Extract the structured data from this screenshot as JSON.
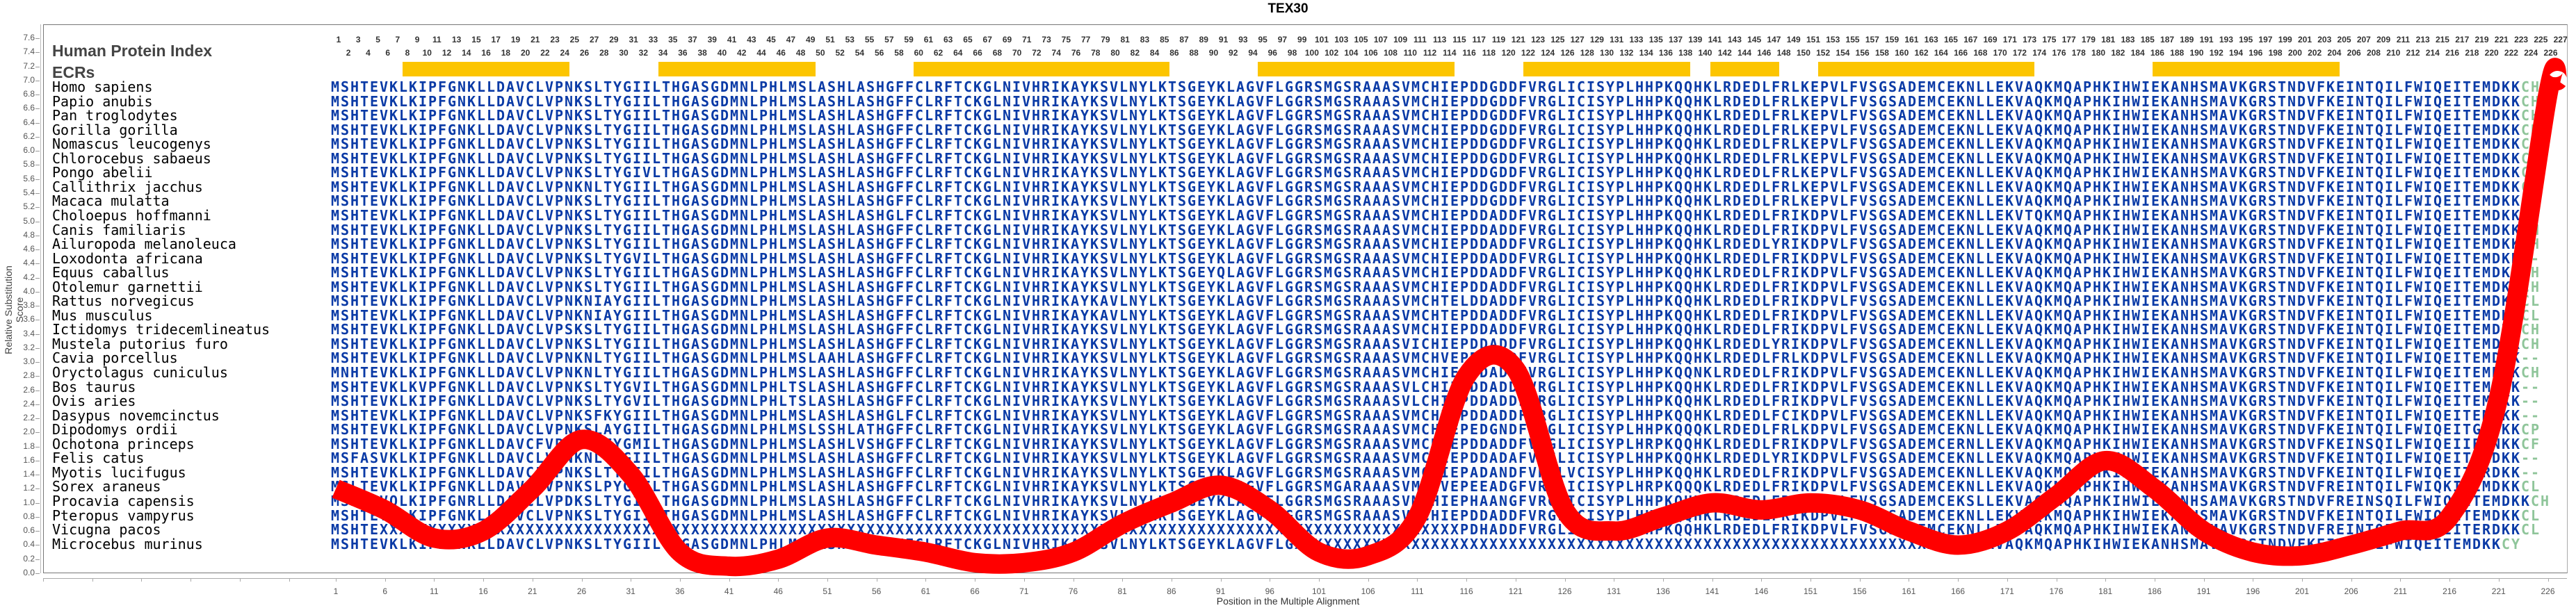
{
  "title": "TEX30",
  "header": {
    "hpi_label": "Human Protein Index",
    "ecr_label": "ECRs"
  },
  "chart_data": {
    "type": "line",
    "title": "TEX30",
    "xlabel": "Position in the Multiple Alignment",
    "ylabel": "Relative Substitution Score",
    "ylim": [
      0.0,
      7.6
    ],
    "xlim": [
      1,
      227
    ],
    "yticks": [
      "0.0",
      "0.2",
      "0.4",
      "0.6",
      "0.8",
      "1.0",
      "1.2",
      "1.4",
      "1.6",
      "1.8",
      "2.0",
      "2.2",
      "2.4",
      "2.6",
      "2.8",
      "3.0",
      "3.2",
      "3.4",
      "3.6",
      "3.8",
      "4.0",
      "4.2",
      "4.4",
      "4.6",
      "4.8",
      "5.0",
      "5.2",
      "5.4",
      "5.6",
      "5.8",
      "6.0",
      "6.2",
      "6.4",
      "6.6",
      "6.8",
      "7.0",
      "7.2",
      "7.4",
      "7.6"
    ],
    "xticks": [
      "1",
      "6",
      "11",
      "16",
      "21",
      "26",
      "31",
      "36",
      "41",
      "46",
      "51",
      "56",
      "61",
      "66",
      "71",
      "76",
      "81",
      "86",
      "91",
      "96",
      "101",
      "106",
      "111",
      "116",
      "121",
      "126",
      "131",
      "136",
      "141",
      "146",
      "151",
      "156",
      "161",
      "166",
      "171",
      "176",
      "181",
      "186",
      "191",
      "196",
      "201",
      "206",
      "211",
      "216",
      "221",
      "226"
    ],
    "series": [
      {
        "name": "Relative Substitution Score",
        "color": "#ff0000",
        "x": [
          1,
          6,
          11,
          16,
          21,
          26,
          31,
          36,
          41,
          46,
          51,
          56,
          61,
          66,
          71,
          76,
          81,
          86,
          91,
          96,
          101,
          106,
          111,
          116,
          121,
          126,
          131,
          136,
          141,
          146,
          151,
          156,
          161,
          166,
          171,
          176,
          181,
          186,
          191,
          196,
          201,
          206,
          211,
          216,
          221,
          226,
          227
        ],
        "values": [
          1.2,
          0.9,
          0.5,
          0.6,
          1.2,
          1.9,
          1.4,
          0.3,
          0.1,
          0.2,
          0.5,
          0.4,
          0.3,
          0.15,
          0.15,
          0.3,
          0.7,
          1.0,
          1.25,
          0.9,
          0.3,
          0.25,
          0.8,
          2.8,
          2.9,
          0.9,
          0.6,
          0.8,
          1.0,
          0.9,
          1.0,
          0.9,
          0.6,
          0.4,
          0.6,
          1.1,
          1.6,
          1.2,
          0.6,
          0.3,
          0.25,
          0.4,
          0.6,
          0.8,
          2.5,
          6.8,
          7.0
        ]
      }
    ],
    "ecr_regions": [
      [
        8,
        24
      ],
      [
        34,
        49
      ],
      [
        60,
        85
      ],
      [
        95,
        114
      ],
      [
        122,
        138
      ],
      [
        141,
        147
      ],
      [
        152,
        173
      ],
      [
        186,
        204
      ]
    ],
    "grid": false,
    "legend": "none"
  },
  "position_numbers": {
    "odd": [
      "1",
      "3",
      "5",
      "7",
      "9",
      "11",
      "13",
      "15",
      "17",
      "19",
      "21",
      "23",
      "25",
      "27",
      "29",
      "31",
      "33",
      "35",
      "37",
      "39",
      "41",
      "43",
      "45",
      "47",
      "49",
      "51",
      "53",
      "55",
      "57",
      "59",
      "61",
      "63",
      "65",
      "67",
      "69",
      "71",
      "73",
      "75",
      "77",
      "79",
      "81",
      "83",
      "85",
      "87",
      "89",
      "91",
      "93",
      "95",
      "97",
      "99",
      "101",
      "103",
      "105",
      "107",
      "109",
      "111",
      "113",
      "115",
      "117",
      "119",
      "121",
      "123",
      "125",
      "127",
      "129",
      "131",
      "133",
      "135",
      "137",
      "139",
      "141",
      "143",
      "145",
      "147",
      "149",
      "151",
      "153",
      "155",
      "157",
      "159",
      "161",
      "163",
      "165",
      "167",
      "169",
      "171",
      "173",
      "175",
      "177",
      "179",
      "181",
      "183",
      "185",
      "187",
      "189",
      "191",
      "193",
      "195",
      "197",
      "199",
      "201",
      "203",
      "205",
      "207",
      "209",
      "211",
      "213",
      "215",
      "217",
      "219",
      "221",
      "223",
      "225",
      "227"
    ],
    "even": [
      "2",
      "4",
      "6",
      "8",
      "10",
      "12",
      "14",
      "16",
      "18",
      "20",
      "22",
      "24",
      "26",
      "28",
      "30",
      "32",
      "34",
      "36",
      "38",
      "40",
      "42",
      "44",
      "46",
      "48",
      "50",
      "52",
      "54",
      "56",
      "58",
      "60",
      "62",
      "64",
      "66",
      "68",
      "70",
      "72",
      "74",
      "76",
      "78",
      "80",
      "82",
      "84",
      "86",
      "88",
      "90",
      "92",
      "94",
      "96",
      "98",
      "100",
      "102",
      "104",
      "106",
      "108",
      "110",
      "112",
      "114",
      "116",
      "118",
      "120",
      "122",
      "124",
      "126",
      "128",
      "130",
      "132",
      "134",
      "136",
      "138",
      "140",
      "142",
      "144",
      "146",
      "148",
      "150",
      "152",
      "154",
      "156",
      "158",
      "160",
      "162",
      "164",
      "166",
      "168",
      "170",
      "172",
      "174",
      "176",
      "178",
      "180",
      "182",
      "184",
      "186",
      "188",
      "190",
      "192",
      "194",
      "196",
      "198",
      "200",
      "202",
      "204",
      "206",
      "208",
      "210",
      "212",
      "214",
      "216",
      "218",
      "220",
      "222",
      "224",
      "226"
    ]
  },
  "alignment": [
    {
      "species": "Homo sapiens",
      "seq": "MSHTEVKLKIPFGNKLLDAVCLVPNKSLTYGIILTHGASGDMNLPHLMSLASHLASHGFFCLRFTCKGLNIVHRIKAYKSVLNYLKTSGEYKLAGVFLGGRSMGSRAAASVMCHIEPDDGDDFVRGLICISYPLHHPKQQHKLRDEDLFRLKEPVLFVSGSADEMCEKNLLEKVAQKMQAPHKIHWIEKANHSMAVKGRSTNDVFKEINTQILFWIQEITEMDKKCH"
    },
    {
      "species": "Papio anubis",
      "seq": "MSHTEVKLKIPFGNKLLDAVCLVPNKSLTYGIILTHGASGDMNLPHLMSLASHLASHGFFCLRFTCKGLNIVHRIKAYKSVLNYLKTSGEYKLAGVFLGGRSMGSRAAASVMCHIEPDDGDDFVRGLICISYPLHHPKQQHKLRDEDLFRLKEPVLFVSGSADEMCEKNLLEKVAQKMQAPHKIHWIEKANHSMAVKGRSTNDVFKEINTQILFWIQEITEMDKKCH"
    },
    {
      "species": "Pan troglodytes",
      "seq": "MSHTEVKLKIPFGNKLLDAVCLVPNKSLTYGIILTHGASGDMNLPHLMSLASHLASHGFFCLRFTCKGLNIVHRIKAYKSVLNYLKTSGEYKLAGVFLGGRSMGSRAAASVMCHIEPDDGDDFVRGLICISYPLHHPKQQHKLRDEDLFRLKEPVLFVSGSADEMCEKNLLEKVAQKMQAPHKIHWIEKANHSMAVKGRSTNDVFKEINTQILFWIQEITEMDKKCH"
    },
    {
      "species": "Gorilla gorilla",
      "seq": "MSHTEVKLKIPFGNKLLDAVCLVPNKSLTYGIILTHGASGDMNLPHLMSLASHLASHGFFCLRFTCKGLNIVHRIKAYKSVLNYLKTSGEYKLAGVFLGGRSMGSRAAASVMCHIEPDDGDDFVRGLICISYPLHHPKQQHKLRDEDLFRLKEPVLFVSGSADEMCEKNLLEKVAQKMQAPHKIHWIEKANHSMAVKGRSTNDVFKEINTQILFWIQEITEMDKKCH"
    },
    {
      "species": "Nomascus leucogenys",
      "seq": "MSHTEVKLKIPFGNKLLDAVCLVPNKSLTYGIILTHGASGDMNLPHLMSLASHLASHGFFCLRFTCKGLNIVHRIKAYKSVLNYLKTSGEYKLAGVFLGGRSMGSRAAASVMCHIEPDDGDDFVRGLICISYPLHHPKQQHKLRDEDLFRLKEPVLFVSGSADEMCEKNLLEKVAQKMQAPHKIHWIEKANHSMAVKGRSTNDVFKEINTQILFWIQEITEMDKKCH"
    },
    {
      "species": "Chlorocebus sabaeus",
      "seq": "MSHTEVKLKIPFGNKLLDAVCLVPNKSLTYGIILTHGASGDMNLPHLMSLASHLASHGFFCLRFTCKGLNIVHRIKAYKSVLNYLKTSGEYKLAGVFLGGRSMGSRAAASVMCHIEPDDGDDFVRGLICISYPLHHPKQQHKLRDEDLFRLKEPVLFVSGSADEMCEKNLLEKVAQKMQAPHKIHWIEKANHSMAVKGRSTNDVFKEINTQILFWIQEITEMDKKCH"
    },
    {
      "species": "Pongo abelii",
      "seq": "MSHTEVKLKIPFGNKLLDAVCLVPNKSLTYGIVLTHGASGDMNLPHLMSLASHLASHGFFCLRFTCKGLNIVHRIKAYKSVLNYLKTSGEYKLAGVFLGGRSMGSRAAASVMCHIEPDDGDDFVRGLICISYPLHHPKQQHKLRDEDLFRLKEPVLFVSGSADEMCEKNLLEKVAQKMQAPHKIHWIEKANHSMAVKGRSTNDVFKEINTQILFWIQEITEMDKKCH"
    },
    {
      "species": "Callithrix jacchus",
      "seq": "MSHTEVKLKIPFGNKLLDAVCLVPNKNLTYGIILTHGASGDMNLPHLMSLASHLASHGFFCLRFTCKGLNIVHRIKAYKSVLNYLKTSGEYKLAGVFLGGRSMGSRAAASVMCHIEPDDGDDFVRGLICISYPLHHPKQQHKLRDEDLFRLKEPVLFVSGSADEMCEKNLLEKVAQKMQAPHKIHWIEKANHSMAVKGRSTNDVFKEINTQILFWIQEITEMDKKCH"
    },
    {
      "species": "Macaca mulatta",
      "seq": "MSHTEVKLKIPFGNKLLDAVCLVPNKSLTYGIILTHGASGDMNLPHLMSLASHLASHGFFCLRFTCKGLNIVHRIKAYKSVLNYLKTSGEYKLAGVFLGGRSMGSRAAASVMCHIEPDDGDDFVRGLICISYPLHHPKQQHKLRDEDLFRLKEPVLFVSGSADEMCEKNLLEKVAQKMQAPHKIHWIEKANHSMAVKGRSTNDVFKEINTQILFWIQEITEMDKKCH"
    },
    {
      "species": "Choloepus hoffmanni",
      "seq": "MSHTEVKLKIPFGNKLLDAVCLVPNKSLTYGIILTHGASGDMNLPHLMSLASHLASHGLFCLRFTCKGLNIVHRIKAYKSVLNYLKTSGEYKLAGVFLGGRSMGSRAAASVMCHIEPDDADDFVRGLICISYPLHHPKQQHKLRDEDLFRIKDPVLFVSGSADEMCEKNLLEKVTQKMQAPHKIHWIEKANHSMAVKGRSTNDVFKEINTQILFWIQEITEMDKKCH"
    },
    {
      "species": "Canis familiaris",
      "seq": "MSHTEVKLKIPFGNKLLDAVCLVPNKSLTYGIILTHGASGDMNLPHLMSLASHLASHGFFCLRFTCKGLNIVHRIKAYKSVLNYLKTSGEYKLAGVFLGGRSMGSRAAASVMCHIEPDDADDFVRGLICISYPLHHPKQQHKLRDEDLFRIKDPVLFVSGSADEMCEKNLLEKVAQKMQAPHKIHWIEKANHSMAVKGRSTNDVFKEINTQILFWIQEITEMDKKCH"
    },
    {
      "species": "Ailuropoda melanoleuca",
      "seq": "MSHTEVKLKIPFGNKLLDAVCLVPNKSLTYGIILTHGASGDMNLPHLMSLASHLASHGFFCLRFTCKGLNIVHRIKAYKSVLNYLKTSGEYKLAGVFLGGRSMGSRAAASVMCHIEPDDADDFVRGLICISYPLHHPKQQHKLRDEDLYRIKDPVLFVSGSADEMCEKNLLEKVAQKMQAPHKIHWIEKANHSMAVKGRSTNDVFKEINTQILFWIQEITEMDKKCH"
    },
    {
      "species": "Loxodonta africana",
      "seq": "MSHTEVKLKIPFGNKLLDAVCLVPNKSLTYGVILTHGASGDMNLPHLMSLASHLASHGFFCLRFTCKGLNIVHRIKAYKSVLNYLKTSGEYKLAGVFLGGRSMGSRAAASVMCHIEPDDADDFVRGLICISYPLHHPKQQHKLRDEDLFRIKDPVLFVSGSADEMCEKNLLEKVAQKMQAPHKIHWIEKANHSMAVKGRSTNDVFKEINTQILFWIQEITEMDKK--"
    },
    {
      "species": "Equus caballus",
      "seq": "MSHTEVKLKIPFGNKLLDAVCLVPNKSLTYGIILTHGASGDMNLPHLMSLASHLASHGFFCLRFTCKGLNIVHRIKAYKSVLNYLKTSGEYQLAGVFLGGRSMGSRAAASVMCHIEPDDADDFVRGLICISYPLHHPKQQHKLRDEDLFRIKDPVLFVSGSADEMCEKNLLEKVAQKMQAPHKIHWIEKANHSMAVKGRSTNDVFKEINTQILFWIQEITEMDKKCH"
    },
    {
      "species": "Otolemur garnettii",
      "seq": "MSHTEVKLKIPFGNKLLDAVCLVPNKSLTYGIILTHGASGDMNLPHLMSLASHLASHGFFCLRFTCKGLNIVHRIKAYKSVLNYLKTSGEYKLAGVFLGGRSMGSRAAASVMCHIEPDDADDFVRGLICISYPLHHPKQQHKLRDEDLFRIKDPVLFVSGSADEMCEKNLLEKVAQKMQAPHKIHWIEKANHSMAVKGRSTNDVFKEINTQILFWIQEITEMDKKCH"
    },
    {
      "species": "Rattus norvegicus",
      "seq": "MSHTEVKLKIPFGNKLLDAVCLVPNKNIAYGIILTHGASGDMNLPHLMSLASHLASHGFFCLRFTCKGLNIVHRIKAYKAVLNYLKTSGEYKLAGVFLGGRSMGSRAAASVMCHTELDDADDFVRGLICISYPLHHPKQQHKLRDEDLFRIKDPVLFVSGSADEMCEKNLLEKVAQKMQAPHKIHWIEKANHSMAVKGRSTNDVFKEINTQILFWIQEITEMDKKCL"
    },
    {
      "species": "Mus musculus",
      "seq": "MSHTEVKLKIPFGNKLLDAVCLVPNKNIAYGIILTHGASGDMNLPHLMSLASHLASHGFFCLRFTCKGLNIVHRIKAYKAVLNYLKTSGEYKLAGVFLGGRSMGSRAAASVMCHTEPDDADDFVRGLICISYPLHHPKQQHKLRDEDLFRIKDPVLFVSGSADEMCEKNLLEKVAQKMQAPHKIHWIEKANHSMAVKGRSTNDVFKEINTQILFWIQEITEMDKKCL"
    },
    {
      "species": "Ictidomys tridecemlineatus",
      "seq": "MSHTEVKLKIPFGNKLLDAVCLVPSKSLTYGIILTHGASGDMNLPHLMSLASHLASHGFFCLRFTCKGLNIVHRIKAYKSVLNYLKTSGEYKLAGVFLGGRSMGSRAAASVMCHIEPDDADDFVRGLICISYPLHHPKQQHKLRDEDLFRIKDPVLFVSGSADEMCEKNLLEKVAQKMQAPHKIHWIEKANHSMAVKGRSTNDVFKEINTQILFWIQEITEMDKKCH"
    },
    {
      "species": "Mustela putorius furo",
      "seq": "MSHTEVKLKIPFGNKLLDAVCLVPNKSLTYGIILTHGASGDMNLPHLMSLASHLASHGFFCLRFTCKGLNIVHRIKAYKSVLNYLKTSGEYKLAGVFLGGRSMGSRAAASVICHIEPDDADDFVRGLICISYPLHHPKQQHKLRDEDLYRIKDPVLFVSGSADEMCEKNLLEKVAQKMQAPHKIHWIEKANHSMAVKGRSTNDVFKEINTQILFWIQEITEMDKKCH"
    },
    {
      "species": "Cavia porcellus",
      "seq": "MSHTEVKLKIPFGNKLLDAVCLVPNKNLTYGIILTHGASGDMNLPHLMSLAAHLASHGFFCLRFTCKGLNIVHRIKAYKSVLNYLKTSGEYKLAGVFLGGRSMGSRAAASVMCHVEPDEADDFVRGLICISYPLHHPKQQHKLRDEDLFRLKDPVLFVSGSADEMCEKNLLEKVAQKMQAPHKIHWIEKANHSMAVKGRSTNDVFKEINTQILFWIQEITEMDKK--"
    },
    {
      "species": "Oryctolagus cuniculus",
      "seq": "MNHTEVKLKIPFGNKLLDAVCLVPNKNLTYGIILTHGASGDMNLPHLMSLASHLASHGFFCLRFTCKGLNIVHRIKAYKSVLNYLKTSGEYKLAGVFLGGRSMGSRAAASVMCHIEPDDADDFVRGLICISYPLHHPKQQNKLRDEDLFRIKDPVLFVSGSADEMCEKNLLEKVAQKMQAPHKIHWIEKANHSMAVKGRSTNDVFKEINTQILFWIQEITEMDKKCH"
    },
    {
      "species": "Bos taurus",
      "seq": "MSHTEVKLKVPFGNKLLDAVCLVPNKSLTYGVILTHGASGDMNLPHLTSLASHLASHGFFCLRFTCKGLNIVHRIKAYKSVLNYLKTSGEYKLAGVFLGGRSMGSRAAASVLCHIEPDDADDFVRGLICISYPLHHPKQQHKLRDEDLFRIKDPVLFVSGSADEMCEKNLLEKVAQKMQAPHKIHWIEKANHSMAVKGRSTNDVFKEINTQILFWIQEITEMDKK--"
    },
    {
      "species": "Ovis aries",
      "seq": "MSHTEVKLKIPFGNKLLDAVCLVPNKSLTYGVILTHGASGDMNLPHLTSLASHLASHGFFCLRFTCKGLNIVHRIKAYKSVLNYLKTSGEYKLAGVFLGGRSMGSRAAASVLCHIEPDDADDFVRGLICISYPLHHPKQQHKLRDEDLFRIKDPVLFVSGSADEMCEKNLLEKVAQKMQAPHKIHWIEKANHSMAVKGRSTNDVFKEINTQILFWIQEITEMDKK--"
    },
    {
      "species": "Dasypus novemcinctus",
      "seq": "MSHTEVKLKIPFGNKLLDAVCLVPNKSFKYGIILTHGASGDMNLPHLMSLASHLASHGLFCLRFTCKGLNIVHRIKAYKSVLNYLKTSGEYKLAGVFLGGRSMGSRAAASVMCHIDPDDADDFVRGLICISYPLHHPKQQHKLRDEDLFCIKDPVLFVSGSADEMCEKNLLEKVAQKMQAPHKIHWIEKANHSMAVKGRSTNDVFKEINTQILFWIQEITEMDKK--"
    },
    {
      "species": "Dipodomys ordii",
      "seq": "MSHTEVKLKIPFGNKLLDAVCLVPNKSLAYGIILTHGASGDMNLPHLMSLSSHLATHGFFCLRFTCKGLNIVHRIKAYKSVLNYLKTSGEYKLAGVFLGGRSMGSRAAASVMCHIEPEDGNDFVRGLICISYPLHHPKQQQKLRDEDLFRLKDPVLFVSGSADEMCEKNLLEKVAQKMQAPHKIHWIEKANHSMAVKGRSTNDVFKEINTQILFWIQEITGMDKKCP"
    },
    {
      "species": "Ochotona princeps",
      "seq": "MSHTEVKLKIPFGNKLLDAVCFVPNKNLTYGMILTHGASGDMNLPHLMSLASHLVSHGFFCLRFTCKGLNIVHRIKAYKSVLNYLKTSGEYKLAGVFLGGRSMGSRAAASVMCHIEPDDADDFVRGLICISYPLHRPKQQHKLRDEDLFRIKDPVLFVSGSADEMCERNLLEKVAQKMQAPHKIHWIEKANHSMAVKGRSTNDVFKEINSQILFWIQEIIEMNKKCF"
    },
    {
      "species": "Felis catus",
      "seq": "MSFASVKLKIPFGNKLLDAVCLVPNKNLTYGIILTHGASGDMNLPHLMSLASHLASHGFFCLRFTCKGLNIVHRIKAYKSVLNYLKTSGEYKLAGVFLGGRSMGSRAAASVMCHIEPDDADAFVRGLICISYPLHHPKQQHKLRDEDLYRIKDPVLFVSGSADEMCEKNLLEKVAQKMQAPHKIHWIEKANHSMAVKGRSTNDVFKEINTQILFWIQEITEMDKK--"
    },
    {
      "species": "Myotis lucifugus",
      "seq": "MSHTEVKLKIPFGNKLLDAVCLVPNKSLTYGIILTHGASGDMNLPHLMSLASHLASHGFFCLRFTCKGLNIVHRIKAYKSVLNYLKTSGEYKLAGVFLGGRSMGSRAAASVMCHIEPADANDFVRGLVCISYPLHHPKQQHKLRDEDLFRIKDPVLFVSGSADEMCEKNLLEKVAQKMQAPHKIHWIEKANHSMAVKGRSTNDVFKEINTQILFWIQEITERDKK--"
    },
    {
      "species": "Sorex araneus",
      "seq": "MSLTEVKLKIPFGNKLLDAVCLVPNKSLPYGIILTHGASGDMNLPHLMSLASHLASHGFFCLRFTCKGLNIVHRIKAYKSVLNYLKTSGEYKLAGVFLGGRSMGARAAASVMCHVEPEEADGFVRGLICISYPLHRPKQQQKLRDEDLFRIKDPVLFVSGSADEMCEKNLLEKVAQKMQAPHKIHWIEKANHSMAVKGRSTNDVFREINTQILFWIQKITEMDKKCL"
    },
    {
      "species": "Procavia capensis",
      "seq": "MSHTEVQLKIPFGNRLLDAACLVPDKSLTYGIILTHGASGDMNLPHLMSLASHLASHGFFCLRFTCKGLNIVHRIKAYKSVLNYLKTSGEYKLAGVFLGGRSMGSRAAASVMCHIEPHAANGFVRGLICISYPLHHPKQHHKLRDEDLFRIRDPVLFVSGSADEMCEKSLLEKVAQKMQAPHKIHWIEKANHSAMAVKGRSTNDVFREINSQILFWIQEITEMDKKCH"
    },
    {
      "species": "Pteropus vampyrus",
      "seq": "MSHTEVKLKIPFGNKLLDAVCLVPNKSLTYGIILTHGASGDMNLPHLMSLASHLASHGFFCLRFTCKGLNIVHRIKAYKSVLNYLKTSGEYKLAGVFLGGRSMGSRAAASVMCHIEPDDADDFVRGLICISYPLHHPKQQHKLRDEDLFRIKDPVLFVSGSADEMCEKNLLEKVAQKMQAPHKIHWIEKANHSMAVKGRSTNDVFKEINTQILFWIQEITEMDKKCL"
    },
    {
      "species": "Vicugna pacos",
      "seq": "MSHTEXXXXXXXXXXXXXXXXXXXXXXXXXXXXXXXXXXXXXXXXXXXXXXXXXXXXXXXXXXXXXXXXXXXXXXXXXXXXXXXXXXXXXXXXXXXXXXXXXXXXXXXXXXXXXXXPDHADDFVRGLICIS-PLHHPKQQHKLRDEDLFRIKDPVLFVSGSADEMCEKNLLEKVAQKMQAPHKIHWIEKANHSMAVKGRSTNDVFREINTQILFWIQEITERDKKCL"
    },
    {
      "species": "Microcebus murinus",
      "seq": "MSHTEVKLKIPFGNKLLDAVCLVPNKSLTYGIILTHGASGDMNLPHLMSLASHLASHGFFCLRFTCKGLNIVHRIKAYKSVLNYLKTSGEYKLAGVFLGXXXXXXXXXXXXXXXXXXXXXXXXXXXXXXXXXXXXXXXXXXXXXXXXXXXXXXXXXXXXXXXXXXXNLLEKVAQKMQAPHKIHWIEKANHSMAVKGRSTNDVFKEINTQILFWIQEITEMDKKCY"
    }
  ],
  "colors": {
    "residue": "#0a3aa6",
    "residue_variable": "#2e6aa8",
    "residue_terminal": "#8fc59a",
    "ecr_bar": "#fcc500",
    "curve": "#ff0000"
  }
}
